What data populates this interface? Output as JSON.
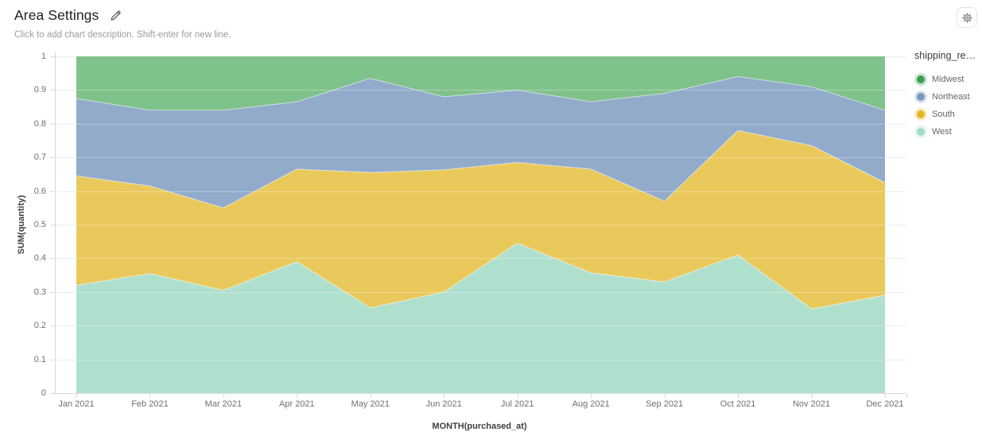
{
  "header": {
    "title": "Area Settings",
    "description_placeholder": "Click to add chart description. Shift-enter for new line."
  },
  "legend": {
    "title": "shipping_re…",
    "items": [
      {
        "label": "Midwest",
        "color": "#3c9e53"
      },
      {
        "label": "Northeast",
        "color": "#7b97c1"
      },
      {
        "label": "South",
        "color": "#e2b723"
      },
      {
        "label": "West",
        "color": "#a0dbc5"
      }
    ]
  },
  "chart_data": {
    "type": "area",
    "stacked": true,
    "normalized": true,
    "title": "Area Settings",
    "xlabel": "MONTH(purchased_at)",
    "ylabel": "SUM(quantity)",
    "ylim": [
      0,
      1
    ],
    "ytick_labels": [
      "1",
      "0.9",
      "0.8",
      "0.7",
      "0.6",
      "0.5",
      "0.4",
      "0.3",
      "0.2",
      "0.1",
      "0"
    ],
    "ytick_values": [
      1,
      0.9,
      0.8,
      0.7,
      0.6,
      0.5,
      0.4,
      0.3,
      0.2,
      0.1,
      0
    ],
    "grid": true,
    "legend_position": "right",
    "x": [
      "Jan 2021",
      "Feb 2021",
      "Mar 2021",
      "Apr 2021",
      "May 2021",
      "Jun 2021",
      "Jul 2021",
      "Aug 2021",
      "Sep 2021",
      "Oct 2021",
      "Nov 2021",
      "Dec 2021"
    ],
    "stack_order_bottom_to_top": [
      "West",
      "South",
      "Northeast",
      "Midwest"
    ],
    "series": [
      {
        "name": "West",
        "color": "#a0dbc5",
        "fill": "#afe0ce",
        "values": [
          0.32,
          0.355,
          0.305,
          0.39,
          0.253,
          0.3,
          0.445,
          0.357,
          0.33,
          0.41,
          0.25,
          0.29
        ]
      },
      {
        "name": "South",
        "color": "#e2b723",
        "fill": "#e9c95c",
        "values": [
          0.325,
          0.26,
          0.245,
          0.275,
          0.402,
          0.363,
          0.24,
          0.308,
          0.24,
          0.37,
          0.485,
          0.335
        ]
      },
      {
        "name": "Northeast",
        "color": "#7b97c1",
        "fill": "#92abcb",
        "values": [
          0.23,
          0.225,
          0.29,
          0.2,
          0.28,
          0.217,
          0.215,
          0.2,
          0.32,
          0.16,
          0.175,
          0.215
        ]
      },
      {
        "name": "Midwest",
        "color": "#3c9e53",
        "fill": "#7fc28b",
        "values": [
          0.125,
          0.16,
          0.16,
          0.135,
          0.065,
          0.12,
          0.1,
          0.135,
          0.11,
          0.06,
          0.09,
          0.16
        ]
      }
    ]
  },
  "colors": {
    "axis_line": "#d8d8dd",
    "grid_line": "#ededf2",
    "grid_overlay": "rgba(255,255,255,0.30)",
    "boundary_line": "rgba(255,255,255,0.55)",
    "tick_text": "#6f6f6f",
    "icon": "#5a5a5a"
  }
}
